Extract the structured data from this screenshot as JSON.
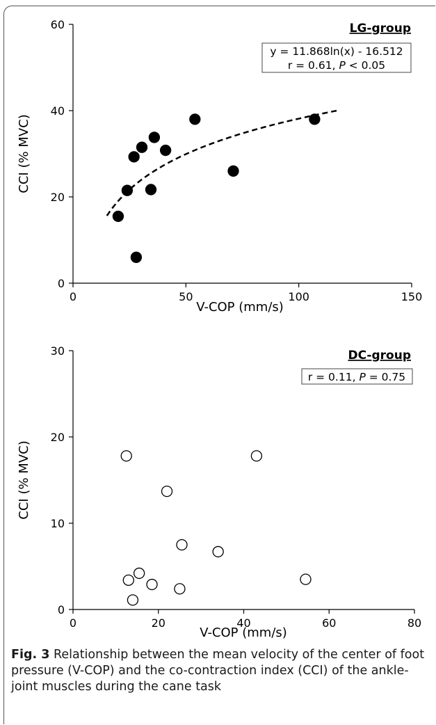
{
  "chart_data": [
    {
      "type": "scatter",
      "group_label": "LG-group",
      "xlabel": "V-COP (mm/s)",
      "ylabel": "CCI (% MVC)",
      "xlim": [
        0,
        150
      ],
      "ylim": [
        0,
        60
      ],
      "x_ticks": [
        "0",
        "50",
        "100",
        "150"
      ],
      "y_ticks": [
        "0",
        "20",
        "40",
        "60"
      ],
      "equation": "y = 11.868ln(x) - 16.512",
      "stat_text": {
        "r": "r = 0.61, ",
        "p_var": "P",
        "p_rest": " < 0.05"
      },
      "marker": "filled",
      "points": [
        {
          "x": 20,
          "y": 15.5
        },
        {
          "x": 24,
          "y": 21.5
        },
        {
          "x": 27,
          "y": 29.3
        },
        {
          "x": 28,
          "y": 6.0
        },
        {
          "x": 30.5,
          "y": 31.5
        },
        {
          "x": 34.5,
          "y": 21.7
        },
        {
          "x": 36,
          "y": 33.8
        },
        {
          "x": 41,
          "y": 30.8
        },
        {
          "x": 54,
          "y": 38.0
        },
        {
          "x": 71,
          "y": 26.0
        },
        {
          "x": 107,
          "y": 38.0
        }
      ],
      "trendline": {
        "type": "logarithmic",
        "a": 11.868,
        "b": -16.512,
        "x_from": 15,
        "x_to": 118
      }
    },
    {
      "type": "scatter",
      "group_label": "DC-group",
      "xlabel": "V-COP (mm/s)",
      "ylabel": "CCI (% MVC)",
      "xlim": [
        0,
        80
      ],
      "ylim": [
        0,
        30
      ],
      "x_ticks": [
        "0",
        "20",
        "40",
        "60",
        "80"
      ],
      "y_ticks": [
        "0",
        "10",
        "20",
        "30"
      ],
      "stat_text": {
        "r": "r = 0.11, ",
        "p_var": "P",
        "p_rest": " = 0.75"
      },
      "marker": "open",
      "points": [
        {
          "x": 12.5,
          "y": 17.8
        },
        {
          "x": 13,
          "y": 3.4
        },
        {
          "x": 14,
          "y": 1.1
        },
        {
          "x": 15.5,
          "y": 4.2
        },
        {
          "x": 18.5,
          "y": 2.9
        },
        {
          "x": 22,
          "y": 13.7
        },
        {
          "x": 25,
          "y": 2.4
        },
        {
          "x": 25.5,
          "y": 7.5
        },
        {
          "x": 34,
          "y": 6.7
        },
        {
          "x": 43,
          "y": 17.8
        },
        {
          "x": 54.5,
          "y": 3.5
        }
      ]
    }
  ],
  "caption": {
    "label": "Fig. 3",
    "text": " Relationship between the mean velocity of the center of foot pressure (V-COP) and the co-contraction index (CCI) of the ankle-joint muscles during the cane task"
  }
}
